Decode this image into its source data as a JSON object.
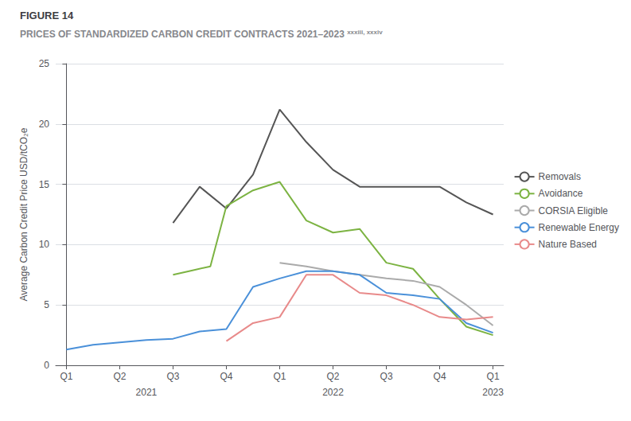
{
  "chart_data": {
    "type": "line",
    "title": "FIGURE 14",
    "subtitle": "PRICES OF STANDARDIZED CARBON CREDIT CONTRACTS 2021–2023",
    "ylabel": "Average Carbon Credit Price USD/tCO₂e",
    "annotations": [
      {
        "text": "xxxiii, xxxiv"
      },
      {
        "text": "2021",
        "x": 1.5
      },
      {
        "text": "2022",
        "x": 5.0
      },
      {
        "text": "2023",
        "x": 8.0
      }
    ],
    "xlim": [
      -0.2,
      8.2
    ],
    "xticks": [
      {
        "value": 0,
        "label": "Q1"
      },
      {
        "value": 1,
        "label": "Q2"
      },
      {
        "value": 2,
        "label": "Q3"
      },
      {
        "value": 3,
        "label": "Q4"
      },
      {
        "value": 4,
        "label": "Q1"
      },
      {
        "value": 5,
        "label": "Q2"
      },
      {
        "value": 6,
        "label": "Q3"
      },
      {
        "value": 7,
        "label": "Q4"
      },
      {
        "value": 8,
        "label": "Q1"
      }
    ],
    "ylim": [
      0,
      25
    ],
    "yticks": [
      0,
      5,
      10,
      15,
      20,
      25
    ],
    "grid": true,
    "legend": "right",
    "series": [
      {
        "name": "Removals",
        "color": "#555555",
        "x": [
          2.0,
          2.5,
          3.0,
          3.5,
          4.0,
          4.5,
          5.0,
          5.5,
          6.0,
          6.5,
          7.0,
          7.5,
          8.0
        ],
        "values": [
          11.8,
          14.8,
          13.0,
          15.8,
          21.2,
          18.5,
          16.2,
          14.8,
          14.8,
          14.8,
          14.8,
          13.5,
          12.5
        ]
      },
      {
        "name": "Avoidance",
        "color": "#7cb342",
        "x": [
          2.0,
          2.3,
          2.7,
          3.0,
          3.5,
          4.0,
          4.5,
          5.0,
          5.5,
          6.0,
          6.5,
          7.0,
          7.5,
          8.0
        ],
        "values": [
          7.5,
          7.8,
          8.2,
          13.2,
          14.5,
          15.2,
          12.0,
          11.0,
          11.3,
          8.5,
          8.0,
          5.5,
          3.2,
          2.5
        ]
      },
      {
        "name": "CORSIA Eligible",
        "color": "#aaaaaa",
        "x": [
          4.0,
          4.5,
          5.0,
          5.5,
          6.0,
          6.5,
          7.0,
          7.5,
          8.0
        ],
        "values": [
          8.5,
          8.2,
          7.8,
          7.5,
          7.2,
          7.0,
          6.5,
          5.0,
          3.3
        ]
      },
      {
        "name": "Renewable Energy",
        "color": "#4a90d9",
        "x": [
          0.0,
          0.5,
          1.0,
          1.5,
          2.0,
          2.5,
          3.0,
          3.5,
          4.0,
          4.5,
          5.0,
          5.5,
          6.0,
          6.5,
          7.0,
          7.5,
          8.0
        ],
        "values": [
          1.3,
          1.7,
          1.9,
          2.1,
          2.2,
          2.8,
          3.0,
          6.5,
          7.2,
          7.8,
          7.8,
          7.5,
          6.0,
          5.8,
          5.5,
          3.5,
          2.7
        ]
      },
      {
        "name": "Nature Based",
        "color": "#e88a8a",
        "x": [
          3.0,
          3.5,
          4.0,
          4.5,
          5.0,
          5.5,
          6.0,
          6.5,
          7.0,
          7.5,
          8.0
        ],
        "values": [
          2.0,
          3.5,
          4.0,
          7.5,
          7.5,
          6.0,
          5.8,
          5.0,
          4.0,
          3.8,
          4.0
        ]
      }
    ]
  }
}
